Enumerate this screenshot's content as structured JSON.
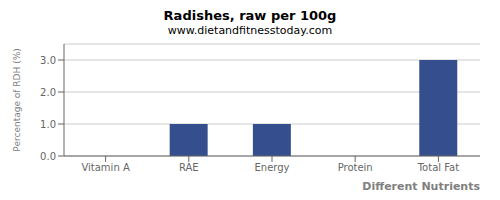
{
  "chart_data": {
    "type": "bar",
    "title": "Radishes, raw per 100g",
    "subtitle": "www.dietandfitnesstoday.com",
    "xlabel": "Different Nutrients",
    "ylabel": "Percentage of RDH (%)",
    "categories": [
      "Vitamin A",
      "RAE",
      "Energy",
      "Protein",
      "Total Fat"
    ],
    "values": [
      0.0,
      1.0,
      1.0,
      0.0,
      3.0
    ],
    "color": "#354f8e",
    "ylim": [
      0,
      3.5
    ],
    "yticks": [
      {
        "value": 0,
        "label": "0.0"
      },
      {
        "value": 1,
        "label": "1.0"
      },
      {
        "value": 2,
        "label": "2.0"
      },
      {
        "value": 3,
        "label": "3.0"
      }
    ],
    "grid": true
  }
}
